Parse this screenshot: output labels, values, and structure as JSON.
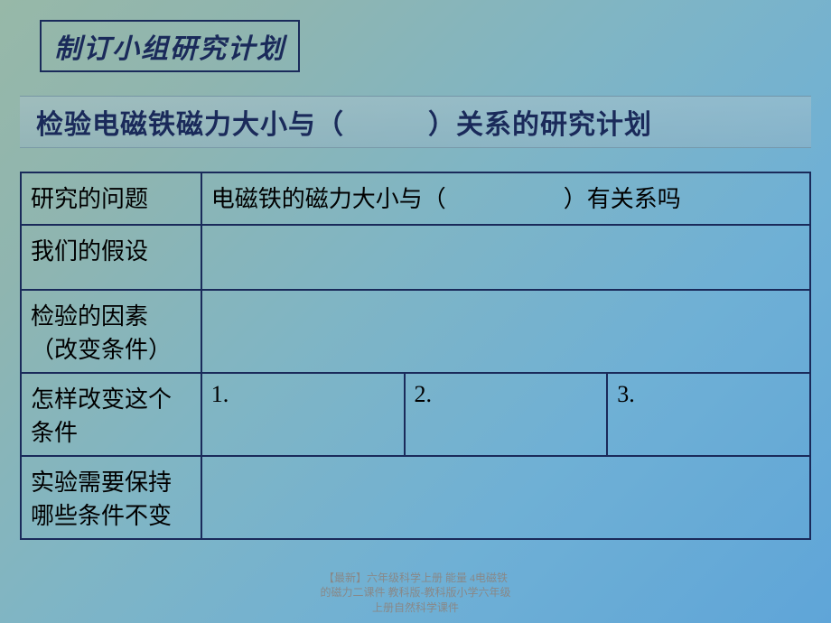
{
  "title": "制订小组研究计划",
  "subtitle": "检验电磁铁磁力大小与（　　　）关系的研究计划",
  "table": {
    "rows": [
      {
        "label": "研究的问题",
        "content": "电磁铁的磁力大小与（　　　　　）有关系吗",
        "type": "full"
      },
      {
        "label": "我们的假设",
        "content": "",
        "type": "full"
      },
      {
        "label": "检验的因素（改变条件）",
        "content": "",
        "type": "full"
      },
      {
        "label": "怎样改变这个条件",
        "col1": "1.",
        "col2": "2.",
        "col3": "3.",
        "type": "three"
      },
      {
        "label": "实验需要保持哪些条件不变",
        "content": "",
        "type": "full"
      }
    ]
  },
  "footer": {
    "line1": "【最新】六年级科学上册 能量 4电磁铁",
    "line2": "的磁力二课件 教科版-教科版小学六年级",
    "line3": "上册自然科学课件"
  },
  "colors": {
    "border": "#1a2a5a",
    "text_dark": "#1a2a5a",
    "text_black": "#000000",
    "footer_text": "#888888"
  }
}
